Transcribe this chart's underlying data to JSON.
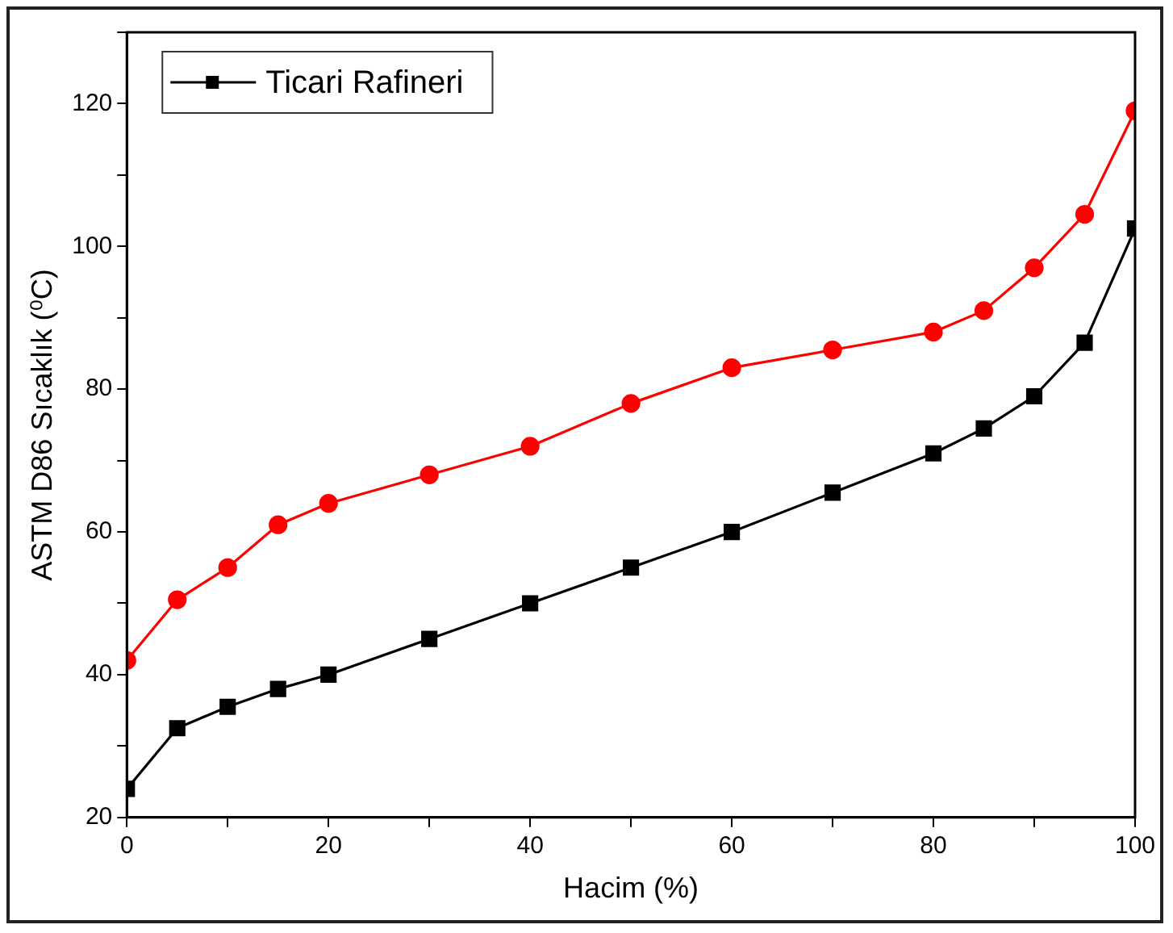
{
  "chart_data": {
    "type": "line",
    "xlabel": "Hacim (%)",
    "ylabel": "ASTM D86 Sıcaklık (⁰C)",
    "x": [
      0,
      5,
      10,
      15,
      20,
      30,
      40,
      50,
      60,
      70,
      80,
      85,
      90,
      95,
      100
    ],
    "series": [
      {
        "name": "Ticari Rafineri",
        "color": "#000000",
        "marker": "square",
        "values": [
          24,
          32.5,
          35.5,
          38,
          40,
          45,
          50,
          55,
          60,
          65.5,
          71,
          74.5,
          79,
          86.5,
          102.5
        ]
      },
      {
        "color": "#ff0000",
        "marker": "circle",
        "values": [
          42,
          50.5,
          55,
          61,
          64,
          68,
          72,
          78,
          83,
          85.5,
          88,
          91,
          97,
          104.5,
          119
        ]
      }
    ],
    "xlim": [
      0,
      100
    ],
    "xticks": [
      0,
      {
        "value": 10,
        "label": null
      },
      20,
      {
        "value": 30,
        "label": null
      },
      40,
      {
        "value": 50,
        "label": null
      },
      60,
      {
        "value": 70,
        "label": null
      },
      80,
      {
        "value": 90,
        "label": null
      },
      100
    ],
    "ylim": [
      20,
      130
    ],
    "yticks": [
      20,
      {
        "value": 30,
        "label": null
      },
      40,
      {
        "value": 50,
        "label": null
      },
      60,
      {
        "value": 70,
        "label": null
      },
      80,
      {
        "value": 90,
        "label": null
      },
      100,
      {
        "value": 110,
        "label": null
      },
      120,
      {
        "value": 130,
        "label": null
      }
    ],
    "grid": false,
    "legend": "top left",
    "line_style": "solid"
  }
}
